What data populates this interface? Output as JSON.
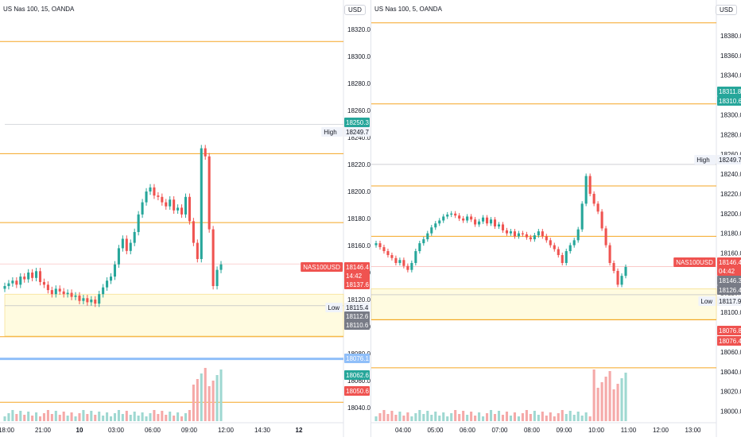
{
  "colors": {
    "up": "#26a69a",
    "down": "#ef5350",
    "level": "#f5a623",
    "blue_level": "#90bff9",
    "zone": "#fffbe0",
    "grid": "#f0f3fa",
    "axis_text": "#131722",
    "time_text": "#131722"
  },
  "charts": [
    {
      "title": "US Nas 100, 15, OANDA",
      "currency": "USD",
      "ylim": [
        18030,
        18330
      ],
      "y_ticks": [
        "18040.0",
        "18060.0",
        "18080.0",
        "18100.0",
        "18120.0",
        "18140.0",
        "18160.0",
        "18180.0",
        "18200.0",
        "18220.0",
        "18240.0",
        "18260.0",
        "18280.0",
        "18300.0",
        "18320.0"
      ],
      "x_labels": [
        "18:00",
        "21:00",
        "10",
        "03:00",
        "06:00",
        "09:00",
        "12:00",
        "14:30",
        "12"
      ],
      "levels": [
        18311,
        18228,
        18177,
        18092.5,
        18044
      ],
      "blue_level": 18076.1,
      "zone": [
        18093,
        18124
      ],
      "high_line": 18249.7,
      "low_line": 18115.4,
      "price_tags": [
        {
          "label": "",
          "value": "18250.3",
          "color": "#26a69a"
        },
        {
          "label": "High",
          "value": "18249.7",
          "color": "#f0f3fa"
        },
        {
          "label": "NAS100USD",
          "value": "18146.4",
          "color": "#ef5350"
        },
        {
          "label": "",
          "value": "14:42",
          "color": "#ef5350"
        },
        {
          "label": "",
          "value": "18137.6",
          "color": "#ef5350"
        },
        {
          "label": "Low",
          "value": "18115.4",
          "color": "#f0f3fa"
        },
        {
          "label": "",
          "value": "18112.6",
          "color": "#787b86"
        },
        {
          "label": "",
          "value": "18110.6",
          "color": "#787b86"
        },
        {
          "label": "",
          "value": "18076.1",
          "color": "#90bff9"
        },
        {
          "label": "",
          "value": "18062.6",
          "color": "#26a69a"
        },
        {
          "label": "",
          "value": "18050.6",
          "color": "#ef5350"
        }
      ],
      "candles": [
        18130,
        18132,
        18134,
        18131,
        18137,
        18135,
        18140,
        18136,
        18141,
        18133,
        18131,
        18127,
        18124,
        18128,
        18126,
        18124,
        18125,
        18122,
        18123,
        18119,
        18121,
        18118,
        18120,
        18117,
        18124,
        18129,
        18134,
        18137,
        18146,
        18158,
        18165,
        18156,
        18162,
        18170,
        18183,
        18192,
        18200,
        18203,
        18197,
        18196,
        18192,
        18189,
        18194,
        18186,
        18188,
        18183,
        18196,
        18178,
        18162,
        18150,
        18232,
        18226,
        18172,
        18130,
        18142,
        18146
      ]
    },
    {
      "title": "US Nas 100, 5, OANDA",
      "currency": "USD",
      "ylim": [
        17990,
        18400
      ],
      "y_ticks": [
        "18000.0",
        "18020.0",
        "18040.0",
        "18060.0",
        "18080.0",
        "18100.0",
        "18120.0",
        "18140.0",
        "18160.0",
        "18180.0",
        "18200.0",
        "18220.0",
        "18240.0",
        "18260.0",
        "18280.0",
        "18300.0",
        "18320.0",
        "18340.0",
        "18360.0",
        "18380.0"
      ],
      "x_labels": [
        "04:00",
        "05:00",
        "06:00",
        "07:00",
        "08:00",
        "09:00",
        "10:00",
        "11:00",
        "12:00",
        "13:00"
      ],
      "levels": [
        18393,
        18311,
        18228,
        18177,
        18092.5,
        18044
      ],
      "zone": [
        18093,
        18124
      ],
      "high_line": 18249.7,
      "low_line": 18117.9,
      "price_tags": [
        {
          "label": "",
          "value": "18311.8",
          "color": "#26a69a"
        },
        {
          "label": "",
          "value": "18310.6",
          "color": "#26a69a"
        },
        {
          "label": "High",
          "value": "18249.7",
          "color": "#f0f3fa"
        },
        {
          "label": "NAS100USD",
          "value": "18146.4",
          "color": "#ef5350"
        },
        {
          "label": "",
          "value": "04:42",
          "color": "#ef5350"
        },
        {
          "label": "",
          "value": "18146.3",
          "color": "#787b86"
        },
        {
          "label": "",
          "value": "18126.4",
          "color": "#787b86"
        },
        {
          "label": "Low",
          "value": "18117.9",
          "color": "#f0f3fa"
        },
        {
          "label": "",
          "value": "18076.8",
          "color": "#ef5350"
        },
        {
          "label": "",
          "value": "18076.4",
          "color": "#ef5350"
        }
      ],
      "candles": [
        18170,
        18166,
        18162,
        18158,
        18155,
        18150,
        18153,
        18147,
        18143,
        18150,
        18162,
        18170,
        18174,
        18180,
        18186,
        18190,
        18193,
        18197,
        18199,
        18200,
        18198,
        18195,
        18193,
        18197,
        18194,
        18189,
        18192,
        18196,
        18190,
        18194,
        18187,
        18189,
        18183,
        18180,
        18182,
        18177,
        18180,
        18179,
        18176,
        18174,
        18178,
        18182,
        18177,
        18173,
        18168,
        18164,
        18158,
        18150,
        18162,
        18168,
        18173,
        18184,
        18210,
        18238,
        18220,
        18210,
        18202,
        18185,
        18168,
        18150,
        18142,
        18128,
        18137,
        18146
      ]
    }
  ]
}
